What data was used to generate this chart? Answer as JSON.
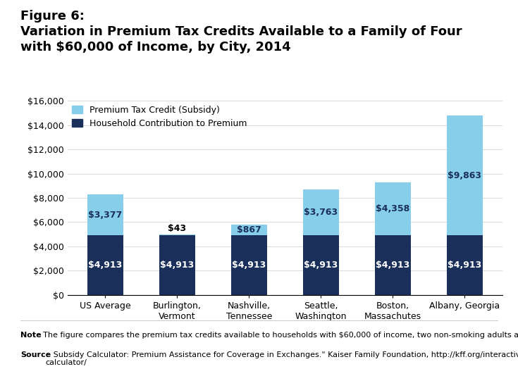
{
  "categories": [
    "US Average",
    "Burlington,\nVermont",
    "Nashville,\nTennessee",
    "Seattle,\nWashington",
    "Boston,\nMassachutes",
    "Albany, Georgia"
  ],
  "household": [
    4913,
    4913,
    4913,
    4913,
    4913,
    4913
  ],
  "subsidy": [
    3377,
    43,
    867,
    3763,
    4358,
    9863
  ],
  "household_color": "#1a2f5a",
  "subsidy_color": "#87ceeb",
  "household_label": "Household Contribution to Premium",
  "subsidy_label": "Premium Tax Credit (Subsidy)",
  "title_line1": "Figure 6:",
  "title_line2": "Variation in Premium Tax Credits Available to a Family of Four",
  "title_line3": "with $60,000 of Income, by City, 2014",
  "ylim": [
    0,
    16000
  ],
  "yticks": [
    0,
    2000,
    4000,
    6000,
    8000,
    10000,
    12000,
    14000,
    16000
  ],
  "note_bold": "Note",
  "note_text": ": The figure compares the premium tax credits available to households with $60,000 of income, two non-smoking adults and two children",
  "source_bold": "Source",
  "source_text": ":  Subsidy Calculator: Premium Assistance for Coverage in Exchanges.\" Kaiser Family Foundation, http://kff.org/interactive/subsidy-\ncalculator/",
  "bar_width": 0.5
}
